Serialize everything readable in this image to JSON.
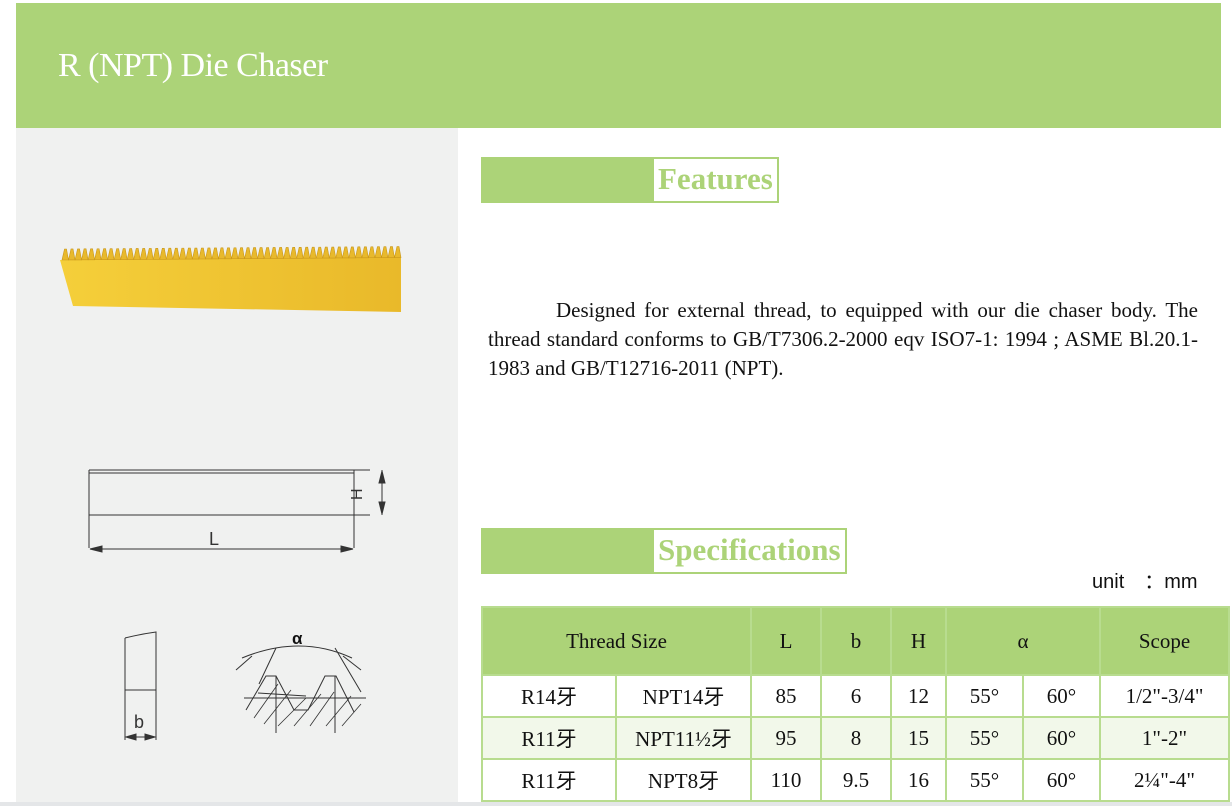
{
  "header": {
    "title": "R (NPT) Die Chaser"
  },
  "brand": {
    "accent": "#acd378",
    "panel": "#f0f1f0",
    "product": "#f0c22e"
  },
  "features": {
    "heading": "Features",
    "text": "Designed for external thread, to equipped with our die chaser body. The thread standard conforms to GB/T7306.2-2000 eqv ISO7-1: 1994 ; ASME Bl.20.1-1983 and GB/T12716-2011 (NPT)."
  },
  "specifications": {
    "heading": "Specifications",
    "unit": "unit　：mm",
    "columns": {
      "thread_size": "Thread Size",
      "L": "L",
      "b": "b",
      "H": "H",
      "alpha": "α",
      "scope": "Scope"
    },
    "rows": [
      {
        "r": "R14牙",
        "npt": "NPT14牙",
        "L": "85",
        "b": "6",
        "H": "12",
        "a1": "55°",
        "a2": "60°",
        "scope": "1/2\"-3/4\""
      },
      {
        "r": "R11牙",
        "npt": "NPT11½牙",
        "L": "95",
        "b": "8",
        "H": "15",
        "a1": "55°",
        "a2": "60°",
        "scope": "1\"-2\""
      },
      {
        "r": "R11牙",
        "npt": "NPT8牙",
        "L": "110",
        "b": "9.5",
        "H": "16",
        "a1": "55°",
        "a2": "60°",
        "scope": "2¼\"-4\""
      }
    ]
  },
  "drawings": {
    "L": "L",
    "H": "H",
    "b": "b",
    "alpha": "α"
  }
}
